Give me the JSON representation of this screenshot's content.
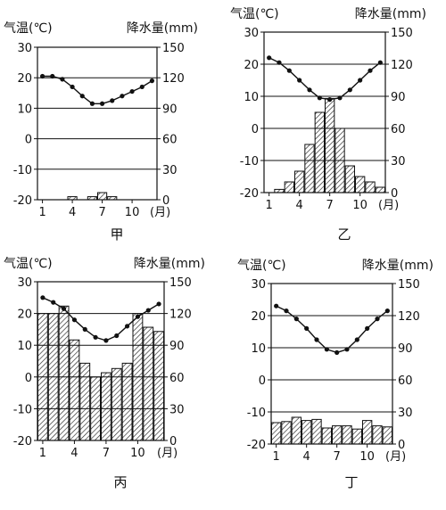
{
  "axis_titles": {
    "temperature": "气温(℃)",
    "precipitation": "降水量(mm)",
    "month_unit": "(月)"
  },
  "chart_data": [
    {
      "type": "bar",
      "label": "甲",
      "x": [
        1,
        2,
        3,
        4,
        5,
        6,
        7,
        8,
        9,
        10,
        11,
        12
      ],
      "temperature_c": [
        20.5,
        20.5,
        19.5,
        17,
        14,
        11.5,
        11.5,
        12.5,
        14,
        15.5,
        17,
        19
      ],
      "precipitation_mm": [
        0,
        0,
        0,
        3,
        0,
        3,
        7,
        3,
        0,
        0,
        0,
        0
      ],
      "temp_ticks": [
        30,
        20,
        10,
        0,
        -10,
        -20
      ],
      "precip_ticks": [
        150,
        120,
        90,
        60,
        30,
        0
      ],
      "x_ticks": [
        1,
        4,
        7,
        10
      ],
      "ylim_temp": [
        -20,
        30
      ],
      "ylim_precip": [
        0,
        150
      ]
    },
    {
      "type": "bar",
      "label": "乙",
      "x": [
        1,
        2,
        3,
        4,
        5,
        6,
        7,
        8,
        9,
        10,
        11,
        12
      ],
      "temperature_c": [
        22,
        20.5,
        18,
        15,
        12,
        9.5,
        9,
        9.5,
        12,
        15,
        18,
        20.5
      ],
      "precipitation_mm": [
        0,
        3,
        10,
        20,
        45,
        75,
        88,
        60,
        25,
        15,
        10,
        5
      ],
      "temp_ticks": [
        30,
        20,
        10,
        0,
        -10,
        -20
      ],
      "precip_ticks": [
        150,
        120,
        90,
        60,
        30,
        0
      ],
      "x_ticks": [
        1,
        4,
        7,
        10
      ],
      "ylim_temp": [
        -20,
        30
      ],
      "ylim_precip": [
        0,
        150
      ]
    },
    {
      "type": "bar",
      "label": "丙",
      "x": [
        1,
        2,
        3,
        4,
        5,
        6,
        7,
        8,
        9,
        10,
        11,
        12
      ],
      "temperature_c": [
        25,
        23.5,
        21.5,
        18,
        15,
        12.5,
        11.5,
        13,
        16,
        19,
        21,
        23
      ],
      "precipitation_mm": [
        120,
        120,
        127,
        95,
        73,
        60,
        64,
        68,
        73,
        120,
        107,
        103
      ],
      "temp_ticks": [
        30,
        20,
        10,
        0,
        -10,
        -20
      ],
      "precip_ticks": [
        150,
        120,
        90,
        60,
        30,
        0
      ],
      "x_ticks": [
        1,
        4,
        7,
        10
      ],
      "ylim_temp": [
        -20,
        30
      ],
      "ylim_precip": [
        0,
        150
      ]
    },
    {
      "type": "bar",
      "label": "丁",
      "x": [
        1,
        2,
        3,
        4,
        5,
        6,
        7,
        8,
        9,
        10,
        11,
        12
      ],
      "temperature_c": [
        23,
        21.5,
        19,
        16,
        12.5,
        9.5,
        8.5,
        9.5,
        12.5,
        16,
        19,
        21.5
      ],
      "precipitation_mm": [
        20,
        21,
        25,
        22,
        23,
        15,
        17,
        17,
        14,
        22,
        17,
        16
      ],
      "temp_ticks": [
        30,
        20,
        10,
        0,
        -10,
        -20
      ],
      "precip_ticks": [
        150,
        120,
        90,
        60,
        30,
        0
      ],
      "x_ticks": [
        1,
        4,
        7,
        10
      ],
      "ylim_temp": [
        -20,
        30
      ],
      "ylim_precip": [
        0,
        150
      ]
    }
  ]
}
